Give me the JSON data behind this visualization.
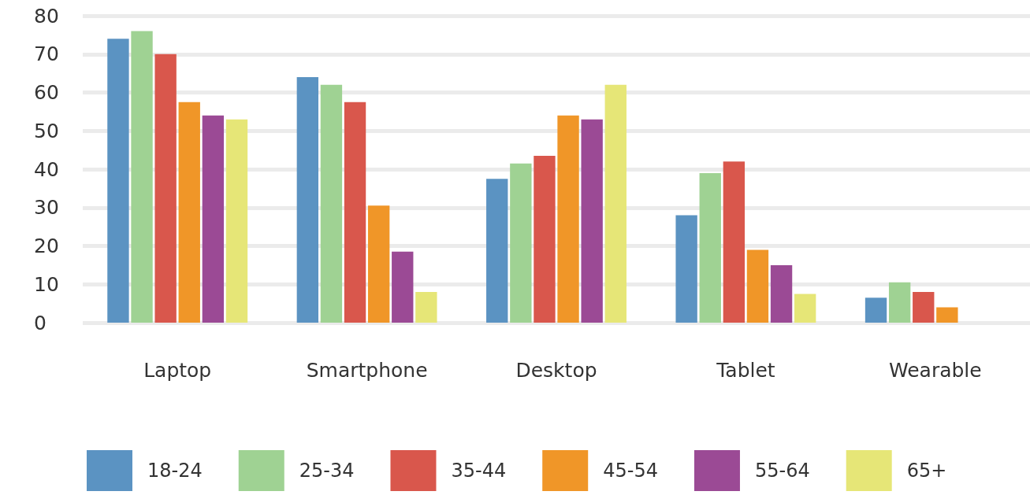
{
  "chart_data": {
    "type": "bar",
    "categories": [
      "Laptop",
      "Smartphone",
      "Desktop",
      "Tablet",
      "Wearable"
    ],
    "series": [
      {
        "name": "18-24",
        "color": "#5b93c2",
        "values": [
          74,
          64,
          37.5,
          28,
          6.5
        ]
      },
      {
        "name": "25-34",
        "color": "#9fd293",
        "values": [
          76,
          62,
          41.5,
          39,
          10.5
        ]
      },
      {
        "name": "35-44",
        "color": "#d9574c",
        "values": [
          70,
          57.5,
          43.5,
          42,
          8
        ]
      },
      {
        "name": "45-54",
        "color": "#f09628",
        "values": [
          57.5,
          30.5,
          54,
          19,
          4
        ]
      },
      {
        "name": "55-64",
        "color": "#9b4a95",
        "values": [
          54,
          18.5,
          53,
          15,
          null
        ]
      },
      {
        "name": "65+",
        "color": "#e6e677",
        "values": [
          53,
          8,
          62,
          7.5,
          null
        ]
      }
    ],
    "ylim": [
      0,
      80
    ],
    "yticks": [
      0,
      10,
      20,
      30,
      40,
      50,
      60,
      70,
      80
    ],
    "grid": "y",
    "legend": "bottom"
  }
}
